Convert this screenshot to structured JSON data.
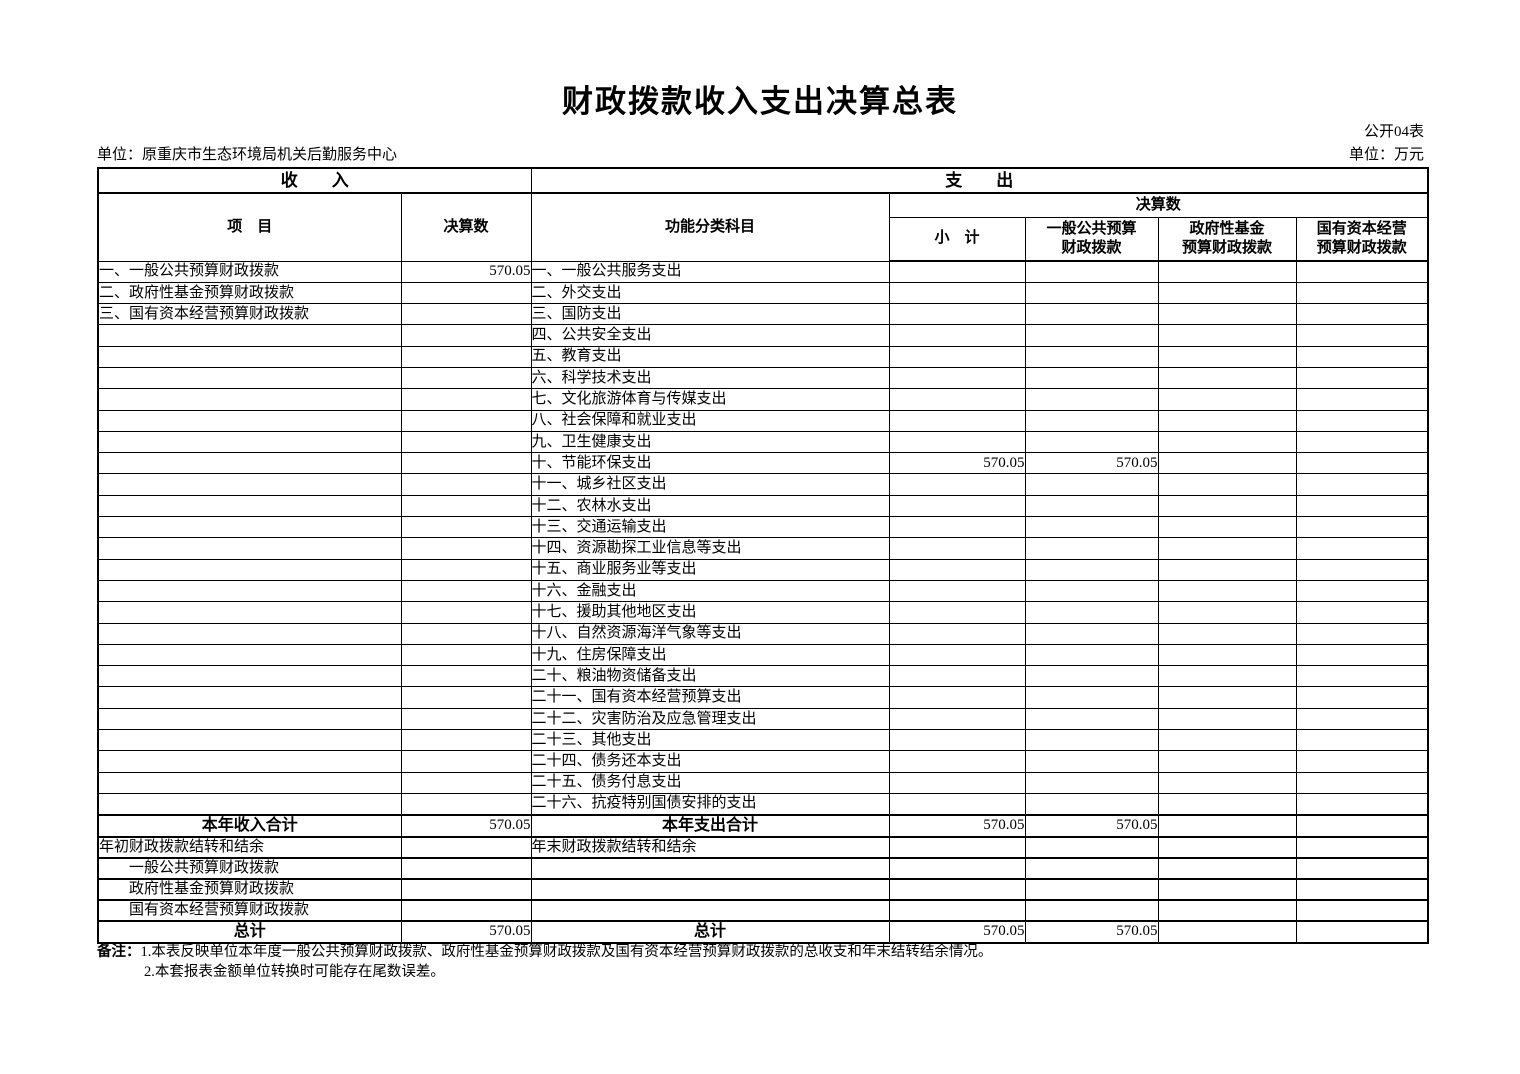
{
  "page": {
    "title": "财政拨款收入支出决算总表",
    "form_code": "公开04表",
    "unit_name": "单位：原重庆市生态环境局机关后勤服务中心",
    "amount_unit": "单位：万元"
  },
  "table": {
    "headers": {
      "income": "收　　入",
      "expense": "支　　出",
      "item": "项　目",
      "final_amount": "决算数",
      "functional_subject": "功能分类科目",
      "final_amount_group": "决算数",
      "subtotal": "小　计",
      "general_public_budget": "一般公共预算\n财政拨款",
      "gov_fund_budget": "政府性基金\n预算财政拨款",
      "state_capital_budget": "国有资本经营\n预算财政拨款"
    },
    "rows": [
      {
        "type": "item",
        "l": "一、一般公共预算财政拨款",
        "lv": "570.05",
        "r": "一、一般公共服务支出",
        "s": "",
        "g": "",
        "f": "",
        "k": ""
      },
      {
        "type": "item",
        "l": "二、政府性基金预算财政拨款",
        "lv": "",
        "r": "二、外交支出",
        "s": "",
        "g": "",
        "f": "",
        "k": ""
      },
      {
        "type": "item",
        "l": "三、国有资本经营预算财政拨款",
        "lv": "",
        "r": "三、国防支出",
        "s": "",
        "g": "",
        "f": "",
        "k": ""
      },
      {
        "type": "item",
        "l": "",
        "lv": "",
        "r": "四、公共安全支出",
        "s": "",
        "g": "",
        "f": "",
        "k": ""
      },
      {
        "type": "item",
        "l": "",
        "lv": "",
        "r": "五、教育支出",
        "s": "",
        "g": "",
        "f": "",
        "k": ""
      },
      {
        "type": "item",
        "l": "",
        "lv": "",
        "r": "六、科学技术支出",
        "s": "",
        "g": "",
        "f": "",
        "k": ""
      },
      {
        "type": "item",
        "l": "",
        "lv": "",
        "r": "七、文化旅游体育与传媒支出",
        "s": "",
        "g": "",
        "f": "",
        "k": ""
      },
      {
        "type": "item",
        "l": "",
        "lv": "",
        "r": "八、社会保障和就业支出",
        "s": "",
        "g": "",
        "f": "",
        "k": ""
      },
      {
        "type": "item",
        "l": "",
        "lv": "",
        "r": "九、卫生健康支出",
        "s": "",
        "g": "",
        "f": "",
        "k": ""
      },
      {
        "type": "item",
        "l": "",
        "lv": "",
        "r": "十、节能环保支出",
        "s": "570.05",
        "g": "570.05",
        "f": "",
        "k": ""
      },
      {
        "type": "item",
        "l": "",
        "lv": "",
        "r": "十一、城乡社区支出",
        "s": "",
        "g": "",
        "f": "",
        "k": ""
      },
      {
        "type": "item",
        "l": "",
        "lv": "",
        "r": "十二、农林水支出",
        "s": "",
        "g": "",
        "f": "",
        "k": ""
      },
      {
        "type": "item",
        "l": "",
        "lv": "",
        "r": "十三、交通运输支出",
        "s": "",
        "g": "",
        "f": "",
        "k": ""
      },
      {
        "type": "item",
        "l": "",
        "lv": "",
        "r": "十四、资源勘探工业信息等支出",
        "s": "",
        "g": "",
        "f": "",
        "k": ""
      },
      {
        "type": "item",
        "l": "",
        "lv": "",
        "r": "十五、商业服务业等支出",
        "s": "",
        "g": "",
        "f": "",
        "k": ""
      },
      {
        "type": "item",
        "l": "",
        "lv": "",
        "r": "十六、金融支出",
        "s": "",
        "g": "",
        "f": "",
        "k": ""
      },
      {
        "type": "item",
        "l": "",
        "lv": "",
        "r": "十七、援助其他地区支出",
        "s": "",
        "g": "",
        "f": "",
        "k": ""
      },
      {
        "type": "item",
        "l": "",
        "lv": "",
        "r": "十八、自然资源海洋气象等支出",
        "s": "",
        "g": "",
        "f": "",
        "k": ""
      },
      {
        "type": "item",
        "l": "",
        "lv": "",
        "r": "十九、住房保障支出",
        "s": "",
        "g": "",
        "f": "",
        "k": ""
      },
      {
        "type": "item",
        "l": "",
        "lv": "",
        "r": "二十、粮油物资储备支出",
        "s": "",
        "g": "",
        "f": "",
        "k": ""
      },
      {
        "type": "item",
        "l": "",
        "lv": "",
        "r": "二十一、国有资本经营预算支出",
        "s": "",
        "g": "",
        "f": "",
        "k": ""
      },
      {
        "type": "item",
        "l": "",
        "lv": "",
        "r": "二十二、灾害防治及应急管理支出",
        "s": "",
        "g": "",
        "f": "",
        "k": ""
      },
      {
        "type": "item",
        "l": "",
        "lv": "",
        "r": "二十三、其他支出",
        "s": "",
        "g": "",
        "f": "",
        "k": ""
      },
      {
        "type": "item",
        "l": "",
        "lv": "",
        "r": "二十四、债务还本支出",
        "s": "",
        "g": "",
        "f": "",
        "k": ""
      },
      {
        "type": "item",
        "l": "",
        "lv": "",
        "r": "二十五、债务付息支出",
        "s": "",
        "g": "",
        "f": "",
        "k": ""
      },
      {
        "type": "item",
        "l": "",
        "lv": "",
        "r": "二十六、抗疫特别国债安排的支出",
        "s": "",
        "g": "",
        "f": "",
        "k": ""
      },
      {
        "type": "total",
        "l": "本年收入合计",
        "lv": "570.05",
        "r": "本年支出合计",
        "s": "570.05",
        "g": "570.05",
        "f": "",
        "k": ""
      },
      {
        "type": "carryover",
        "l": "年初财政拨款结转和结余",
        "lv": "",
        "r": "年末财政拨款结转和结余",
        "s": "",
        "g": "",
        "f": "",
        "k": ""
      },
      {
        "type": "sub",
        "l": "一般公共预算财政拨款",
        "lv": "",
        "r": "",
        "s": "",
        "g": "",
        "f": "",
        "k": ""
      },
      {
        "type": "sub",
        "l": "政府性基金预算财政拨款",
        "lv": "",
        "r": "",
        "s": "",
        "g": "",
        "f": "",
        "k": ""
      },
      {
        "type": "sub",
        "l": "国有资本经营预算财政拨款",
        "lv": "",
        "r": "",
        "s": "",
        "g": "",
        "f": "",
        "k": ""
      },
      {
        "type": "total",
        "l": "总计",
        "lv": "570.05",
        "r": "总计",
        "s": "570.05",
        "g": "570.05",
        "f": "",
        "k": ""
      }
    ]
  },
  "notes": {
    "label": "备注：",
    "line1": "1.本表反映单位本年度一般公共预算财政拨款、政府性基金预算财政拨款及国有资本经营预算财政拨款的总收支和年末结转结余情况。",
    "line2": "2.本套报表金额单位转换时可能存在尾数误差。"
  }
}
